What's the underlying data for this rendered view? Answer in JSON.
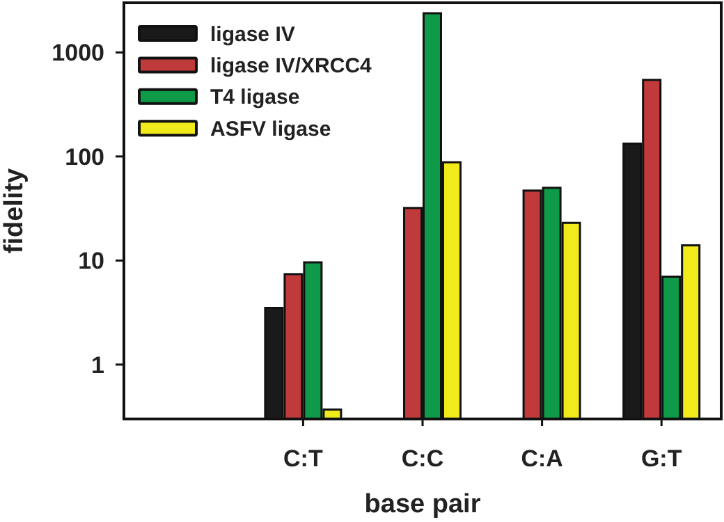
{
  "chart_data": {
    "type": "bar",
    "xlabel": "base pair",
    "ylabel": "fidelity",
    "categories": [
      null,
      "C:T",
      "C:C",
      "C:A",
      "G:T"
    ],
    "log": true,
    "ylim": [
      0.3,
      3000
    ],
    "yticks": [
      1,
      10,
      100,
      1000
    ],
    "legend": "top left",
    "grid": false,
    "series": [
      {
        "name": "ligase IV",
        "color": "#1a1a1a",
        "values": [
          null,
          3.5,
          null,
          null,
          133
        ]
      },
      {
        "name": "ligase IV/XRCC4",
        "color": "#c0393b",
        "values": [
          null,
          7.4,
          32,
          47,
          545
        ]
      },
      {
        "name": "T4 ligase",
        "color": "#0e9a48",
        "values": [
          null,
          9.6,
          2380,
          50,
          7
        ]
      },
      {
        "name": "ASFV ligase",
        "color": "#f2eb1c",
        "values": [
          null,
          0.37,
          88,
          23,
          14
        ]
      }
    ]
  }
}
